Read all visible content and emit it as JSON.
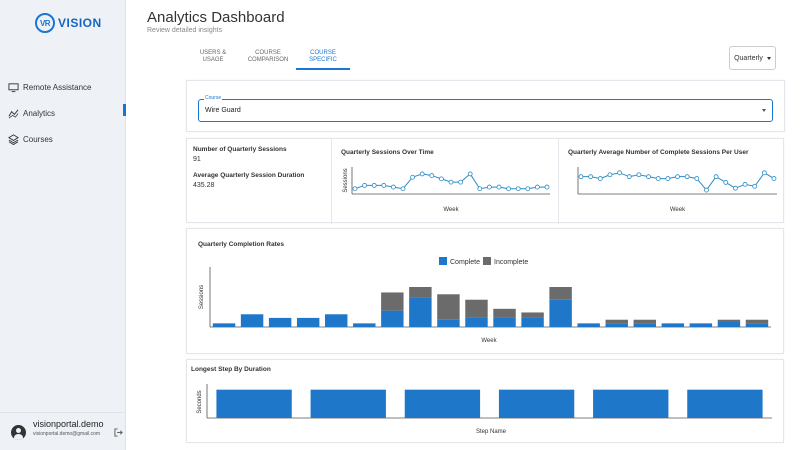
{
  "brand": {
    "badge": "VR",
    "name": "VISION"
  },
  "sidebar": {
    "items": [
      {
        "label": "Remote Assistance",
        "icon": "monitor-icon",
        "active": false
      },
      {
        "label": "Analytics",
        "icon": "analytics-icon",
        "active": true
      },
      {
        "label": "Courses",
        "icon": "layers-icon",
        "active": false
      }
    ]
  },
  "user": {
    "name": "visionportal.demo",
    "email": "visionportal.demo@gmail.com"
  },
  "header": {
    "title": "Analytics Dashboard",
    "subtitle": "Review detailed insights"
  },
  "tabs": [
    {
      "label": "USERS & USAGE",
      "active": false
    },
    {
      "label": "COURSE COMPARISON",
      "active": false
    },
    {
      "label": "COURSE SPECIFIC",
      "active": true
    }
  ],
  "period": {
    "value": "Quarterly"
  },
  "course_select": {
    "label": "Course",
    "value": "Wire Guard"
  },
  "stats": {
    "sessions_label": "Number of Quarterly Sessions",
    "sessions_value": "91",
    "duration_label": "Average Quarterly Session Duration",
    "duration_value": "435.28"
  },
  "colors": {
    "accent": "#1976d2",
    "complete": "#1f77c9",
    "incomplete": "#6b6b6b",
    "line": "#2b8cc4"
  },
  "chart_data": [
    {
      "type": "line",
      "title": "Quarterly Sessions Over Time",
      "xlabel": "Week",
      "ylabel": "Sessions",
      "x": [
        1,
        2,
        3,
        4,
        5,
        6,
        7,
        8,
        9,
        10,
        11,
        12,
        13,
        14,
        15,
        16,
        17,
        18,
        19,
        20,
        21
      ],
      "values": [
        2,
        4,
        4,
        4,
        3,
        2,
        9,
        11,
        10,
        8,
        6,
        6,
        11,
        2,
        3,
        3,
        2,
        2,
        2,
        3,
        3
      ],
      "ylim": [
        0,
        14
      ]
    },
    {
      "type": "line",
      "title": "Quarterly Average Number of Complete Sessions Per User",
      "xlabel": "Week",
      "values": [
        8,
        8,
        7,
        9,
        10,
        8,
        9,
        8,
        7,
        7,
        8,
        8,
        7,
        1,
        8,
        5,
        2,
        4,
        3,
        10,
        7
      ],
      "ylim": [
        0,
        12
      ]
    },
    {
      "type": "bar",
      "title": "Quarterly Completion Rates",
      "xlabel": "Week",
      "ylabel": "Sessions",
      "legend": [
        "Complete",
        "Incomplete"
      ],
      "series": [
        {
          "name": "Complete",
          "values": [
            2,
            7,
            5,
            5,
            7,
            2,
            9,
            16,
            4,
            5,
            5,
            5,
            15,
            2,
            2,
            2,
            2,
            2,
            3,
            2
          ]
        },
        {
          "name": "Incomplete",
          "values": [
            0,
            0,
            0,
            0,
            0,
            0,
            10,
            6,
            14,
            10,
            5,
            3,
            7,
            0,
            2,
            2,
            0,
            0,
            1,
            2
          ]
        }
      ],
      "ylim": [
        0,
        33
      ]
    },
    {
      "type": "bar",
      "title": "Longest Step By Duration",
      "xlabel": "Step Name",
      "ylabel": "Seconds",
      "values": [
        10,
        10,
        10,
        10,
        10,
        10
      ],
      "ylim": [
        0,
        12
      ]
    }
  ]
}
